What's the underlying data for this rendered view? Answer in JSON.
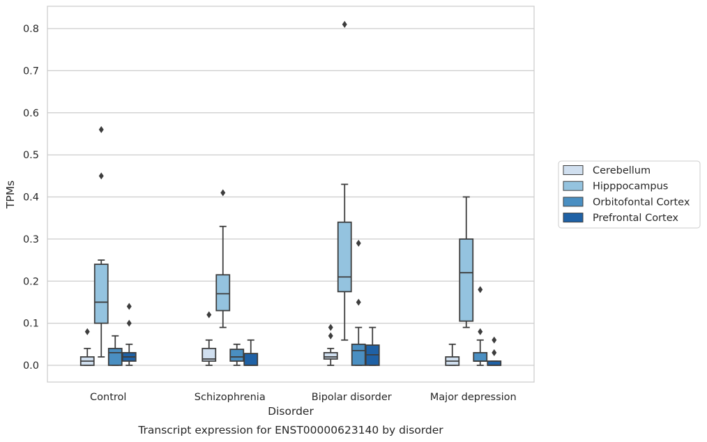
{
  "chart_data": {
    "type": "box",
    "title": "Transcript expression for ENST00000623140 by disorder",
    "xlabel": "Disorder",
    "ylabel": "TPMs",
    "ylim": [
      -0.04,
      0.855
    ],
    "yticks": [
      0.0,
      0.1,
      0.2,
      0.3,
      0.4,
      0.5,
      0.6,
      0.7,
      0.8
    ],
    "grid": true,
    "legend_position": "right",
    "categories": [
      "Control",
      "Schizophrenia",
      "Bipolar disorder",
      "Major depression"
    ],
    "series": [
      {
        "name": "Cerebellum",
        "color": "#d0dfef",
        "boxes": [
          {
            "whisker_low": 0.0,
            "q1": 0.0,
            "median": 0.01,
            "q3": 0.02,
            "whisker_high": 0.04,
            "outliers": [
              0.08
            ]
          },
          {
            "whisker_low": 0.0,
            "q1": 0.01,
            "median": 0.015,
            "q3": 0.04,
            "whisker_high": 0.06,
            "outliers": [
              0.12
            ]
          },
          {
            "whisker_low": 0.0,
            "q1": 0.015,
            "median": 0.02,
            "q3": 0.03,
            "whisker_high": 0.04,
            "outliers": [
              0.07,
              0.09
            ]
          },
          {
            "whisker_low": 0.0,
            "q1": 0.0,
            "median": 0.01,
            "q3": 0.02,
            "whisker_high": 0.05,
            "outliers": []
          }
        ]
      },
      {
        "name": "Hipppocampus",
        "color": "#94c3df",
        "boxes": [
          {
            "whisker_low": 0.02,
            "q1": 0.1,
            "median": 0.15,
            "q3": 0.24,
            "whisker_high": 0.25,
            "outliers": [
              0.45,
              0.56
            ]
          },
          {
            "whisker_low": 0.09,
            "q1": 0.13,
            "median": 0.17,
            "q3": 0.215,
            "whisker_high": 0.33,
            "outliers": [
              0.41
            ]
          },
          {
            "whisker_low": 0.06,
            "q1": 0.175,
            "median": 0.21,
            "q3": 0.34,
            "whisker_high": 0.43,
            "outliers": [
              0.81
            ]
          },
          {
            "whisker_low": 0.09,
            "q1": 0.105,
            "median": 0.22,
            "q3": 0.3,
            "whisker_high": 0.4,
            "outliers": []
          }
        ]
      },
      {
        "name": "Orbitofontal Cortex",
        "color": "#4a8fc2",
        "boxes": [
          {
            "whisker_low": 0.0,
            "q1": 0.0,
            "median": 0.03,
            "q3": 0.04,
            "whisker_high": 0.07,
            "outliers": []
          },
          {
            "whisker_low": 0.0,
            "q1": 0.01,
            "median": 0.02,
            "q3": 0.038,
            "whisker_high": 0.05,
            "outliers": []
          },
          {
            "whisker_low": 0.0,
            "q1": 0.0,
            "median": 0.035,
            "q3": 0.05,
            "whisker_high": 0.09,
            "outliers": [
              0.15,
              0.29
            ]
          },
          {
            "whisker_low": 0.0,
            "q1": 0.01,
            "median": 0.01,
            "q3": 0.03,
            "whisker_high": 0.06,
            "outliers": [
              0.08,
              0.18
            ]
          }
        ]
      },
      {
        "name": "Prefrontal Cortex",
        "color": "#1f61a5",
        "boxes": [
          {
            "whisker_low": 0.0,
            "q1": 0.01,
            "median": 0.02,
            "q3": 0.03,
            "whisker_high": 0.05,
            "outliers": [
              0.1,
              0.14
            ]
          },
          {
            "whisker_low": 0.0,
            "q1": 0.0,
            "median": 0.0,
            "q3": 0.028,
            "whisker_high": 0.06,
            "outliers": []
          },
          {
            "whisker_low": 0.0,
            "q1": 0.0,
            "median": 0.025,
            "q3": 0.048,
            "whisker_high": 0.09,
            "outliers": []
          },
          {
            "whisker_low": 0.0,
            "q1": 0.0,
            "median": 0.0,
            "q3": 0.01,
            "whisker_high": 0.01,
            "outliers": [
              0.03,
              0.06
            ]
          }
        ]
      }
    ]
  }
}
